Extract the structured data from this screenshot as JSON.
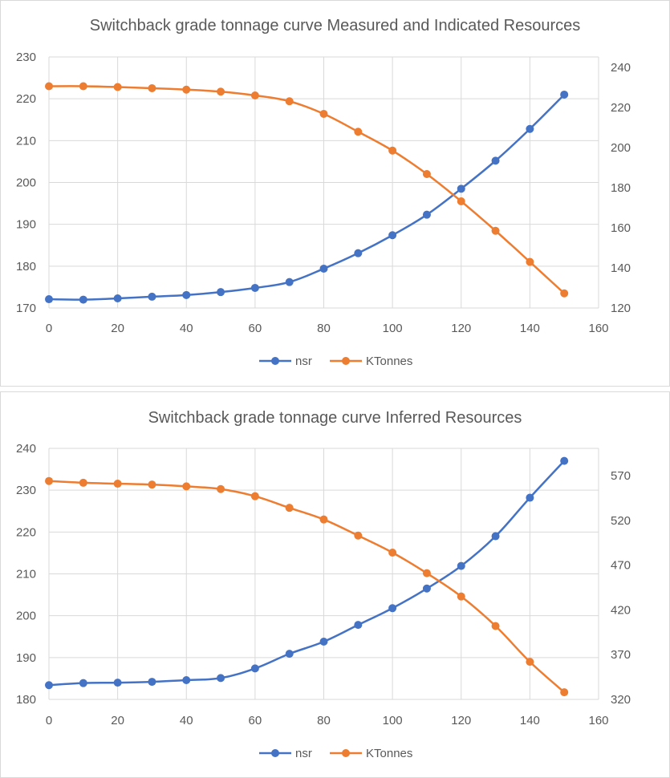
{
  "chart_data": [
    {
      "type": "line",
      "title": "Switchback grade tonnage curve Measured and Indicated Resources",
      "x": [
        0,
        10,
        20,
        30,
        40,
        50,
        60,
        70,
        80,
        90,
        100,
        110,
        120,
        130,
        140,
        150
      ],
      "xlim": [
        0,
        160
      ],
      "xticks": [
        "0",
        "20",
        "40",
        "60",
        "80",
        "100",
        "120",
        "140",
        "160"
      ],
      "ylim_left": [
        170,
        230
      ],
      "yticks_left": [
        "170",
        "180",
        "190",
        "200",
        "210",
        "220",
        "230"
      ],
      "ylim_right": [
        120,
        245
      ],
      "yticks_right": [
        "120",
        "140",
        "160",
        "180",
        "200",
        "220",
        "240"
      ],
      "series": [
        {
          "name": "nsr",
          "axis": "left",
          "color": "#4472c4",
          "values": [
            172.1,
            172.0,
            172.3,
            172.7,
            173.1,
            173.8,
            174.8,
            176.2,
            179.4,
            183.1,
            187.4,
            192.3,
            198.5,
            205.2,
            212.8,
            221.0
          ]
        },
        {
          "name": "KTonnes",
          "axis": "right",
          "color": "#ed7d31",
          "values": [
            230.6,
            230.6,
            230.2,
            229.6,
            228.9,
            227.9,
            226.0,
            223.1,
            216.8,
            207.9,
            198.5,
            186.8,
            173.2,
            158.5,
            143.0,
            127.3
          ]
        }
      ]
    },
    {
      "type": "line",
      "title": "Switchback grade tonnage curve Inferred Resources",
      "x": [
        0,
        10,
        20,
        30,
        40,
        50,
        60,
        70,
        80,
        90,
        100,
        110,
        120,
        130,
        140,
        150
      ],
      "xlim": [
        0,
        160
      ],
      "xticks": [
        "0",
        "20",
        "40",
        "60",
        "80",
        "100",
        "120",
        "140",
        "160"
      ],
      "ylim_left": [
        180,
        240
      ],
      "yticks_left": [
        "180",
        "190",
        "200",
        "210",
        "220",
        "230",
        "240"
      ],
      "ylim_right": [
        320,
        595
      ],
      "yticks_right": [
        "320",
        "370",
        "420",
        "470",
        "520",
        "570"
      ],
      "series": [
        {
          "name": "nsr",
          "axis": "left",
          "color": "#4472c4",
          "values": [
            183.4,
            183.9,
            184.0,
            184.2,
            184.6,
            185.1,
            187.4,
            190.9,
            193.8,
            197.8,
            201.8,
            206.5,
            211.9,
            219.0,
            228.2,
            237.0
          ]
        },
        {
          "name": "KTonnes",
          "axis": "right",
          "color": "#ed7d31",
          "values": [
            564,
            562,
            561,
            560,
            558,
            555,
            547,
            534,
            521,
            503,
            484,
            461,
            435,
            402,
            362,
            328
          ]
        }
      ]
    }
  ]
}
